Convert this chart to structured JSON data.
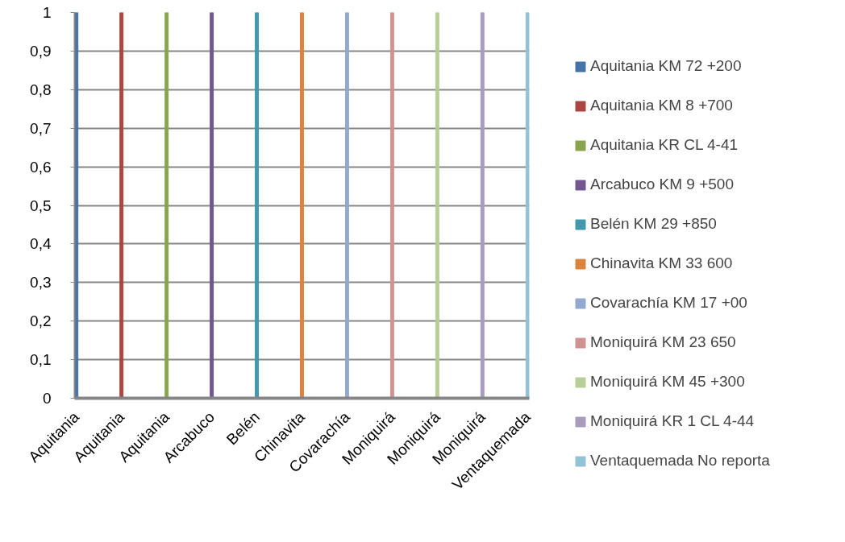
{
  "chart_data": {
    "type": "bar",
    "stacked": true,
    "categories": [
      "Aquitania",
      "Aquitania",
      "Aquitania",
      "Arcabuco",
      "Belén",
      "Chinavita",
      "Covarachía",
      "Moniquirá",
      "Moniquirá",
      "Moniquirá",
      "Ventaquemada"
    ],
    "series": [
      {
        "name": "Aquitania KM 72 +200",
        "color": "#4572a7",
        "values": [
          1,
          null,
          null,
          null,
          null,
          null,
          null,
          null,
          null,
          null,
          null
        ]
      },
      {
        "name": "Aquitania KM 8 +700",
        "color": "#aa4643",
        "values": [
          null,
          1,
          null,
          null,
          null,
          null,
          null,
          null,
          null,
          null,
          null
        ]
      },
      {
        "name": "Aquitania KR CL 4-41",
        "color": "#89a54e",
        "values": [
          null,
          null,
          1,
          null,
          null,
          null,
          null,
          null,
          null,
          null,
          null
        ]
      },
      {
        "name": "Arcabuco KM 9 +500",
        "color": "#71588f",
        "values": [
          null,
          null,
          null,
          1,
          null,
          null,
          null,
          null,
          null,
          null,
          null
        ]
      },
      {
        "name": "Belén KM 29 +850",
        "color": "#4198af",
        "values": [
          null,
          null,
          null,
          null,
          1,
          null,
          null,
          null,
          null,
          null,
          null
        ]
      },
      {
        "name": "Chinavita KM 33 600",
        "color": "#db843d",
        "values": [
          null,
          null,
          null,
          null,
          null,
          1,
          null,
          null,
          null,
          null,
          null
        ]
      },
      {
        "name": "Covarachía KM 17 +00",
        "color": "#93a9cf",
        "values": [
          null,
          null,
          null,
          null,
          null,
          null,
          1,
          null,
          null,
          null,
          null
        ]
      },
      {
        "name": "Moniquirá KM 23 650",
        "color": "#d19392",
        "values": [
          null,
          null,
          null,
          null,
          null,
          null,
          null,
          1,
          null,
          null,
          null
        ]
      },
      {
        "name": "Moniquirá KM 45 +300",
        "color": "#b9cd96",
        "values": [
          null,
          null,
          null,
          null,
          null,
          null,
          null,
          null,
          1,
          null,
          null
        ]
      },
      {
        "name": "Moniquirá KR 1 CL 4-44",
        "color": "#a99bbd",
        "values": [
          null,
          null,
          null,
          null,
          null,
          null,
          null,
          null,
          null,
          1,
          null
        ]
      },
      {
        "name": "Ventaquemada No reporta",
        "color": "#92c3d5",
        "values": [
          null,
          null,
          null,
          null,
          null,
          null,
          null,
          null,
          null,
          null,
          1
        ]
      }
    ],
    "ylim": [
      0,
      1
    ],
    "yticks": [
      0,
      {
        "value": 0.1,
        "label": "0,1"
      },
      {
        "value": 0.2,
        "label": "0,2"
      },
      {
        "value": 0.3,
        "label": "0,3"
      },
      {
        "value": 0.4,
        "label": "0,4"
      },
      {
        "value": 0.5,
        "label": "0,5"
      },
      {
        "value": 0.6,
        "label": "0,6"
      },
      {
        "value": 0.7,
        "label": "0,7"
      },
      {
        "value": 0.8,
        "label": "0,8"
      },
      {
        "value": 0.9,
        "label": "0,9"
      },
      1
    ],
    "grid": "y",
    "legend": "right"
  }
}
